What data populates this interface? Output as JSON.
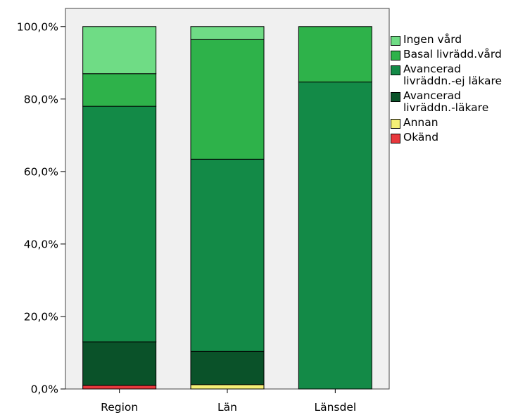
{
  "chart_data": {
    "type": "bar",
    "stacked": true,
    "categories": [
      "Region",
      "Län",
      "Länsdel"
    ],
    "series": [
      {
        "name": "Okänd",
        "color": "#e8383d",
        "values": [
          1.0,
          0.0,
          0.0
        ]
      },
      {
        "name": "Annan",
        "color": "#f5f076",
        "values": [
          0.0,
          1.2,
          0.0
        ]
      },
      {
        "name": "Avancerad livräddn.-läkare",
        "color": "#0a5229",
        "values": [
          12.0,
          9.2,
          0.0
        ]
      },
      {
        "name": "Avancerad livräddn.-ej läkare",
        "color": "#138a47",
        "values": [
          65.0,
          53.0,
          84.7
        ]
      },
      {
        "name": "Basal livrädd.vård",
        "color": "#2eb24a",
        "values": [
          9.0,
          33.0,
          15.3
        ]
      },
      {
        "name": "Ingen vård",
        "color": "#6fdc85",
        "values": [
          13.0,
          3.6,
          0.0
        ]
      }
    ],
    "legend_order": [
      "Ingen vård",
      "Basal livrädd.vård",
      "Avancerad livräddn.-ej läkare",
      "Avancerad livräddn.-läkare",
      "Annan",
      "Okänd"
    ],
    "legend_labels": {
      "Ingen vård": "Ingen vård",
      "Basal livrädd.vård": "Basal livrädd.vård",
      "Avancerad livräddn.-ej läkare": "Avancerad\nlivräddn.-ej läkare",
      "Avancerad livräddn.-läkare": "Avancerad\nlivräddn.-läkare",
      "Annan": "Annan",
      "Okänd": "Okänd"
    },
    "yticks": [
      "0,0%",
      "20,0%",
      "40,0%",
      "60,0%",
      "80,0%",
      "100,0%"
    ],
    "ylim": [
      0,
      105
    ],
    "xlabel": "",
    "ylabel": "",
    "legend_position": "right",
    "grid": false,
    "plot_background": "#f0f0f0"
  }
}
